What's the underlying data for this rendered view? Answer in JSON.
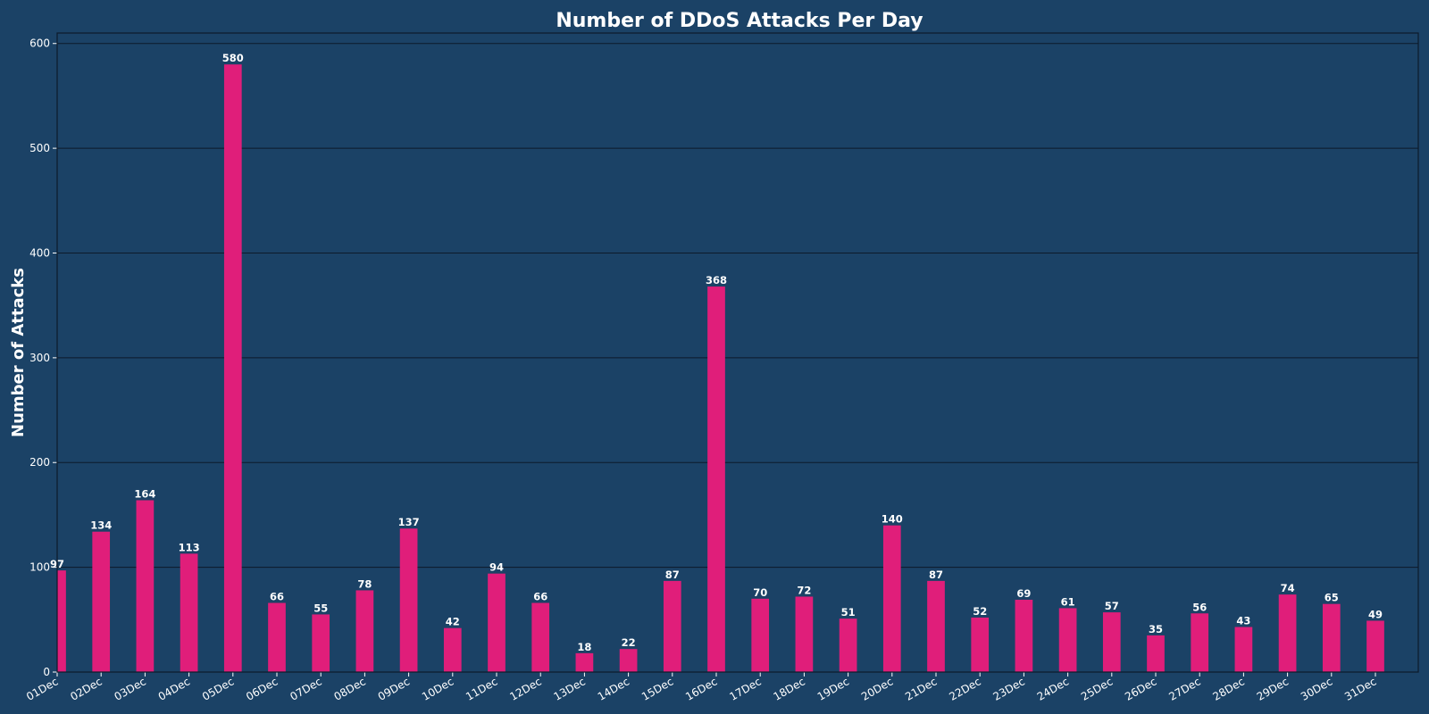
{
  "chart_data": {
    "type": "bar",
    "title": "Number of DDoS Attacks Per Day",
    "xlabel": "",
    "ylabel": "Number of Attacks",
    "categories": [
      "01Dec",
      "02Dec",
      "03Dec",
      "04Dec",
      "05Dec",
      "06Dec",
      "07Dec",
      "08Dec",
      "09Dec",
      "10Dec",
      "11Dec",
      "12Dec",
      "13Dec",
      "14Dec",
      "15Dec",
      "16Dec",
      "17Dec",
      "18Dec",
      "19Dec",
      "20Dec",
      "21Dec",
      "22Dec",
      "23Dec",
      "24Dec",
      "25Dec",
      "26Dec",
      "27Dec",
      "28Dec",
      "29Dec",
      "30Dec",
      "31Dec"
    ],
    "values": [
      97,
      134,
      164,
      113,
      580,
      66,
      55,
      78,
      137,
      42,
      94,
      66,
      18,
      22,
      87,
      368,
      70,
      72,
      51,
      140,
      87,
      52,
      69,
      61,
      57,
      35,
      56,
      43,
      74,
      65,
      49
    ],
    "ylim": [
      0,
      610
    ],
    "yticks": [
      0,
      100,
      200,
      300,
      400,
      500,
      600
    ],
    "grid": true,
    "bar_color": "#e01e7a",
    "background_color": "#1b4266"
  }
}
